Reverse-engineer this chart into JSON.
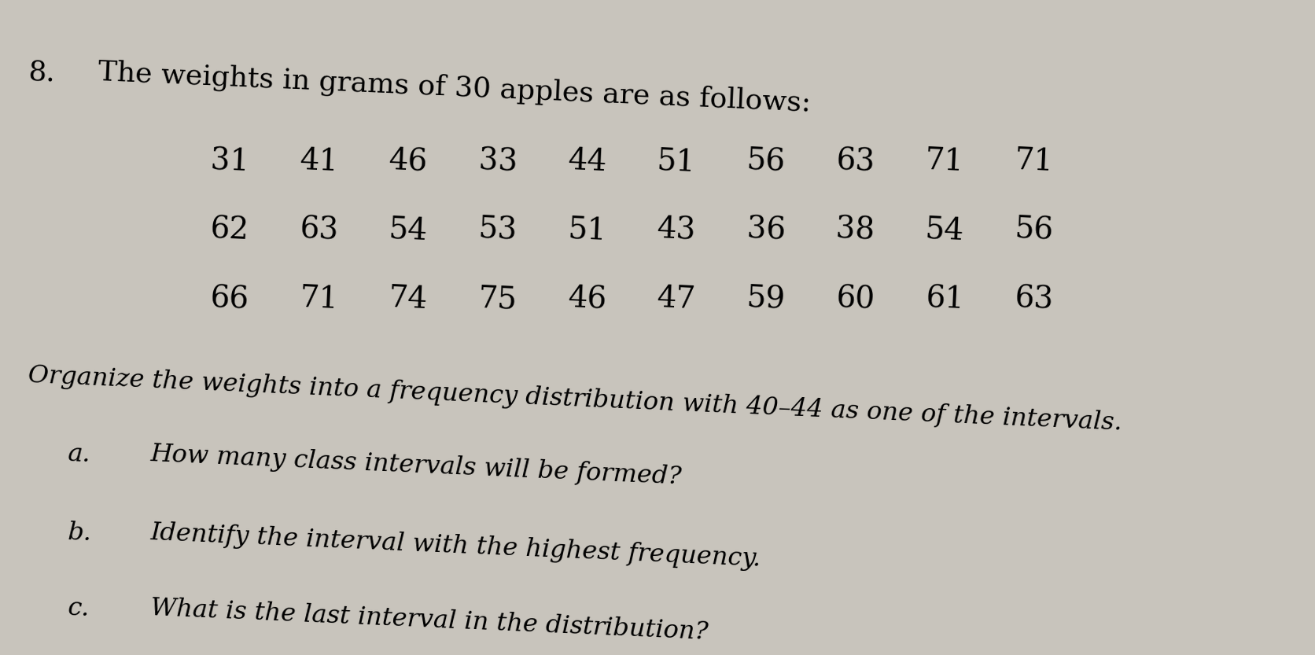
{
  "background_color": "#c8c4bc",
  "problem_number": "8.",
  "title_text": "The weights in grams of 30 apples are as follows:",
  "data_rows": [
    [
      "31",
      "41",
      "46",
      "33",
      "44",
      "51",
      "56",
      "63",
      "71",
      "71"
    ],
    [
      "62",
      "63",
      "54",
      "53",
      "51",
      "43",
      "36",
      "38",
      "54",
      "56"
    ],
    [
      "66",
      "71",
      "74",
      "75",
      "46",
      "47",
      "59",
      "60",
      "61",
      "63"
    ]
  ],
  "instruction_text": "Organize the weights into a frequency distribution with 40–44 as one of the intervals.",
  "questions": [
    {
      "label": "a.",
      "text": "How many class intervals will be formed?"
    },
    {
      "label": "b.",
      "text": "Identify the interval with the highest frequency."
    },
    {
      "label": "c.",
      "text": "What is the last interval in the distribution?"
    }
  ],
  "title_fontsize": 26,
  "data_fontsize": 28,
  "instruction_fontsize": 23,
  "question_fontsize": 23,
  "label_fontsize": 23,
  "number_fontsize": 26,
  "rotation": -2.5
}
